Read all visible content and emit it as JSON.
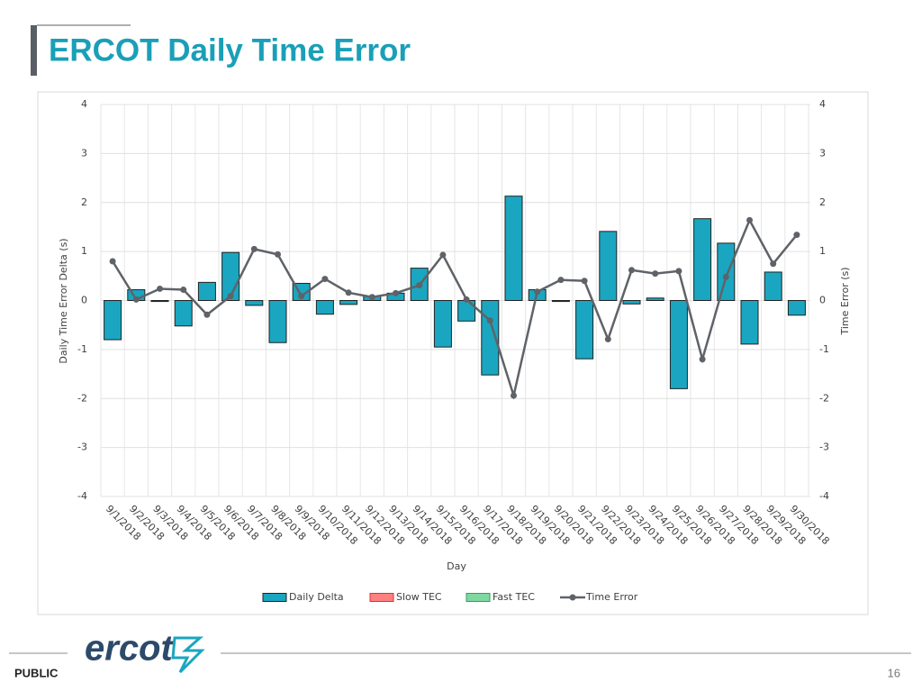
{
  "title": "ERCOT Daily Time Error",
  "footer": {
    "classification": "PUBLIC",
    "logo": "ercot",
    "page": "16"
  },
  "chart_data": {
    "type": "bar-line",
    "x_label": "Day",
    "y_label": "Daily Time Error Delta (s)",
    "y2_label": "Time Error (s)",
    "categories": [
      "9/1/2018",
      "9/2/2018",
      "9/3/2018",
      "9/4/2018",
      "9/5/2018",
      "9/6/2018",
      "9/7/2018",
      "9/8/2018",
      "9/9/2018",
      "9/10/2018",
      "9/11/2018",
      "9/12/2018",
      "9/13/2018",
      "9/14/2018",
      "9/15/2018",
      "9/16/2018",
      "9/17/2018",
      "9/18/2018",
      "9/19/2018",
      "9/20/2018",
      "9/21/2018",
      "9/22/2018",
      "9/23/2018",
      "9/24/2018",
      "9/25/2018",
      "9/26/2018",
      "9/27/2018",
      "9/28/2018",
      "9/29/2018",
      "9/30/2018"
    ],
    "series": [
      {
        "name": "Daily Delta",
        "type": "bar",
        "color": "#1aa6c0",
        "values": [
          -0.8,
          0.22,
          -0.02,
          -0.52,
          0.37,
          0.98,
          -0.1,
          -0.86,
          0.35,
          -0.28,
          -0.08,
          0.09,
          0.15,
          0.66,
          -0.95,
          -0.42,
          -1.52,
          2.13,
          0.22,
          -0.02,
          -1.19,
          1.41,
          -0.07,
          0.05,
          -1.8,
          1.67,
          1.17,
          -0.89,
          0.58,
          -0.3
        ]
      },
      {
        "name": "Slow TEC",
        "type": "bar",
        "color": "#ff8080",
        "values": [
          null,
          null,
          null,
          null,
          null,
          null,
          null,
          null,
          null,
          null,
          null,
          null,
          null,
          null,
          null,
          null,
          null,
          null,
          null,
          null,
          null,
          null,
          null,
          null,
          null,
          null,
          null,
          null,
          null,
          null
        ]
      },
      {
        "name": "Fast TEC",
        "type": "bar",
        "color": "#7ed8a0",
        "values": [
          null,
          null,
          null,
          null,
          null,
          null,
          null,
          null,
          null,
          null,
          null,
          null,
          null,
          null,
          null,
          null,
          null,
          null,
          null,
          null,
          null,
          null,
          null,
          null,
          null,
          null,
          null,
          null,
          null,
          null
        ]
      },
      {
        "name": "Time Error",
        "type": "line",
        "axis": "y2",
        "color": "#5f6368",
        "values": [
          0.8,
          0.02,
          0.24,
          0.22,
          -0.29,
          0.09,
          1.05,
          0.94,
          0.09,
          0.44,
          0.16,
          0.07,
          0.15,
          0.31,
          0.93,
          0.02,
          -0.41,
          -1.94,
          0.18,
          0.42,
          0.4,
          -0.79,
          0.62,
          0.55,
          0.6,
          -1.2,
          0.48,
          1.64,
          0.75,
          1.34
        ]
      }
    ],
    "ylim": [
      -4,
      4
    ],
    "yticks": [
      -4,
      -3,
      -2,
      -1,
      0,
      1,
      2,
      3,
      4
    ],
    "y2lim": [
      -4,
      4
    ],
    "y2ticks": [
      -4,
      -3,
      -2,
      -1,
      0,
      1,
      2,
      3,
      4
    ],
    "grid": true,
    "legend": "bottom"
  }
}
